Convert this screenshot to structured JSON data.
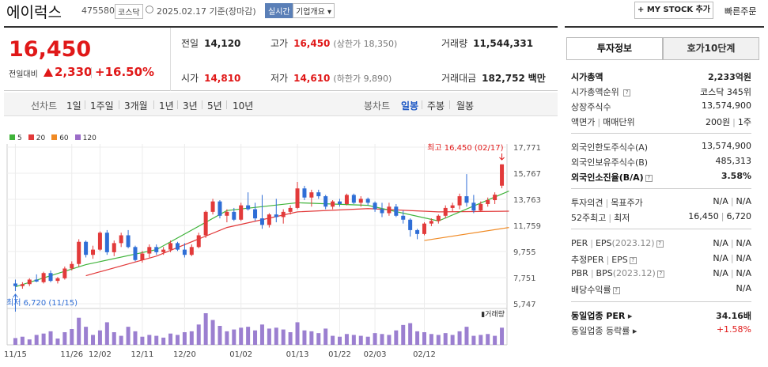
{
  "header": {
    "name": "에이럭스",
    "code": "475580",
    "market": "코스닥",
    "date": "2025.02.17",
    "date_suffix": "기준(장마감)",
    "live_badge": "실시간",
    "info_dropdown": "기업개요",
    "mystock_button": "+ MY STOCK 추가",
    "quick_order": "빠른주문"
  },
  "price": {
    "current": "16,450",
    "compare_label": "전일대비",
    "change": "2,330",
    "change_pct": "+16.50%",
    "accent_color": "#e01818"
  },
  "stats": {
    "prev_close": {
      "label": "전일",
      "value": "14,120"
    },
    "high": {
      "label": "고가",
      "value": "16,450",
      "sub_label": "(상한가",
      "sub_value": "18,350)"
    },
    "volume": {
      "label": "거래량",
      "value": "11,544,331"
    },
    "open": {
      "label": "시가",
      "value": "14,810"
    },
    "low": {
      "label": "저가",
      "value": "14,610",
      "sub_label": "(하한가",
      "sub_value": "9,890)"
    },
    "amount": {
      "label": "거래대금",
      "value": "182,752",
      "unit": "백만"
    }
  },
  "toolbar": {
    "line_label": "선차트",
    "line_periods": [
      "1일",
      "1주일",
      "3개월",
      "1년",
      "3년",
      "5년",
      "10년"
    ],
    "candle_label": "봉차트",
    "candle_periods": [
      "일봉",
      "주봉",
      "월봉"
    ],
    "candle_selected": "일봉"
  },
  "chart_data": {
    "type": "candlestick",
    "legend": [
      {
        "name": "5",
        "color": "#3fb33a"
      },
      {
        "name": "20",
        "color": "#e23a3a"
      },
      {
        "name": "60",
        "color": "#f08a24"
      },
      {
        "name": "120",
        "color": "#9b6cc8"
      }
    ],
    "y_ticks": [
      "17,771",
      "15,767",
      "13,763",
      "11,759",
      "9,755",
      "7,751",
      "5,747"
    ],
    "ylim": [
      5747,
      17771
    ],
    "x_ticks": [
      "11/15",
      "11/26",
      "12/02",
      "12/11",
      "12/20",
      "01/02",
      "01/13",
      "01/22",
      "02/03",
      "02/12"
    ],
    "max_annotation": "최고 16,450 (02/17)",
    "min_annotation": "최저 6,720 (11/15)",
    "volume_label": "거래량",
    "candles": [
      [
        7300,
        7600,
        6720,
        7100
      ],
      [
        7100,
        7400,
        6900,
        7250
      ],
      [
        7250,
        7700,
        7100,
        7600
      ],
      [
        7600,
        8000,
        7400,
        7450
      ],
      [
        7400,
        8200,
        7300,
        8100
      ],
      [
        8100,
        8300,
        7400,
        7500
      ],
      [
        7500,
        7800,
        7300,
        7700
      ],
      [
        7700,
        8600,
        7600,
        8450
      ],
      [
        8450,
        9000,
        8300,
        8800
      ],
      [
        8800,
        10700,
        8600,
        10500
      ],
      [
        10500,
        10600,
        9300,
        9500
      ],
      [
        9500,
        10200,
        9200,
        9900
      ],
      [
        9900,
        11300,
        9800,
        11200
      ],
      [
        11200,
        11400,
        9500,
        9700
      ],
      [
        9700,
        10600,
        9400,
        10400
      ],
      [
        10400,
        11200,
        10100,
        11000
      ],
      [
        11000,
        11400,
        10000,
        10100
      ],
      [
        10100,
        10200,
        9000,
        9100
      ],
      [
        9100,
        9800,
        8900,
        9600
      ],
      [
        9600,
        10300,
        9300,
        10100
      ],
      [
        10100,
        10300,
        9500,
        9700
      ],
      [
        9700,
        10100,
        9500,
        9900
      ],
      [
        9900,
        10600,
        9700,
        10400
      ],
      [
        10400,
        10500,
        9800,
        9900
      ],
      [
        9900,
        10400,
        9300,
        9500
      ],
      [
        9500,
        10300,
        9400,
        10100
      ],
      [
        10100,
        11200,
        10000,
        11000
      ],
      [
        11000,
        12900,
        10800,
        12800
      ],
      [
        12800,
        13800,
        12600,
        13600
      ],
      [
        13600,
        13700,
        12300,
        12500
      ],
      [
        12500,
        13000,
        12000,
        12800
      ],
      [
        12800,
        13100,
        12100,
        12200
      ],
      [
        12200,
        13500,
        12100,
        13300
      ],
      [
        13300,
        14300,
        12900,
        13000
      ],
      [
        13000,
        13500,
        12100,
        12300
      ],
      [
        12300,
        14100,
        11500,
        11800
      ],
      [
        11800,
        12700,
        11600,
        12600
      ],
      [
        12600,
        13800,
        12000,
        12400
      ],
      [
        12400,
        13000,
        11900,
        12800
      ],
      [
        12800,
        13300,
        12600,
        13100
      ],
      [
        13100,
        15100,
        13000,
        14600
      ],
      [
        14600,
        14800,
        13700,
        13900
      ],
      [
        13900,
        14500,
        13200,
        14300
      ],
      [
        14300,
        14500,
        13800,
        14000
      ],
      [
        14000,
        14100,
        13000,
        13200
      ],
      [
        13200,
        13700,
        13000,
        13600
      ],
      [
        13600,
        13800,
        13200,
        13400
      ],
      [
        13400,
        14200,
        13300,
        14100
      ],
      [
        14100,
        14200,
        13400,
        13500
      ],
      [
        13500,
        14000,
        13200,
        13800
      ],
      [
        13800,
        13900,
        13300,
        13500
      ],
      [
        13500,
        13600,
        12800,
        13000
      ],
      [
        13000,
        13500,
        12400,
        12700
      ],
      [
        12700,
        13500,
        12500,
        13200
      ],
      [
        13200,
        13400,
        12400,
        12500
      ],
      [
        12500,
        12900,
        11900,
        12200
      ],
      [
        12200,
        12300,
        10900,
        11400
      ],
      [
        11400,
        11500,
        10700,
        11100
      ],
      [
        11100,
        12000,
        11000,
        11900
      ],
      [
        11900,
        12300,
        11700,
        12100
      ],
      [
        12100,
        12600,
        11900,
        12500
      ],
      [
        12500,
        13300,
        12300,
        13100
      ],
      [
        13100,
        13500,
        12800,
        13300
      ],
      [
        13300,
        14200,
        13000,
        14000
      ],
      [
        14000,
        15700,
        13200,
        13500
      ],
      [
        13500,
        14100,
        12700,
        12900
      ],
      [
        12900,
        13600,
        12800,
        13400
      ],
      [
        13400,
        13900,
        13200,
        13700
      ],
      [
        13700,
        14300,
        13400,
        14120
      ],
      [
        14810,
        16450,
        14610,
        16450
      ]
    ],
    "ma5": [
      [
        0,
        7050
      ],
      [
        10,
        8750
      ],
      [
        20,
        9900
      ],
      [
        30,
        12900
      ],
      [
        40,
        13500
      ],
      [
        50,
        13300
      ],
      [
        60,
        12100
      ],
      [
        70,
        14400
      ]
    ],
    "ma20": [
      [
        10,
        7900
      ],
      [
        20,
        9400
      ],
      [
        30,
        11600
      ],
      [
        40,
        12800
      ],
      [
        50,
        13050
      ],
      [
        60,
        12800
      ],
      [
        70,
        12850
      ]
    ],
    "ma60": [
      [
        58,
        10600
      ],
      [
        70,
        11600
      ]
    ],
    "volumes": [
      15,
      18,
      12,
      22,
      25,
      30,
      14,
      28,
      35,
      60,
      40,
      22,
      32,
      50,
      28,
      20,
      40,
      30,
      18,
      22,
      20,
      16,
      25,
      22,
      28,
      30,
      45,
      70,
      55,
      42,
      30,
      34,
      38,
      40,
      32,
      45,
      36,
      38,
      34,
      28,
      50,
      32,
      30,
      26,
      36,
      20,
      18,
      24,
      22,
      20,
      18,
      26,
      24,
      22,
      32,
      44,
      48,
      30,
      28,
      24,
      22,
      26,
      22,
      30,
      40,
      20,
      22,
      24,
      20,
      38
    ]
  },
  "side": {
    "tab_active": "투자정보",
    "tab_inactive": "호가10단계",
    "market_cap": {
      "label": "시가총액",
      "value": "2,233억원"
    },
    "market_cap_rank": {
      "label": "시가총액순위",
      "value": "코스닥 345위"
    },
    "listed_shares": {
      "label": "상장주식수",
      "value": "13,574,900"
    },
    "par": {
      "label": "액면가",
      "label2": "매매단위",
      "value": "200원",
      "value2": "1주"
    },
    "foreign_limit": {
      "label": "외국인한도주식수(A)",
      "value": "13,574,900"
    },
    "foreign_hold": {
      "label": "외국인보유주식수(B)",
      "value": "485,313"
    },
    "foreign_ratio": {
      "label": "외국인소진율(B/A)",
      "value": "3.58%"
    },
    "opinion": {
      "label": "투자의견",
      "label2": "목표주가",
      "value": "N/A",
      "value2": "N/A"
    },
    "week52": {
      "label": "52주최고",
      "label2": "최저",
      "value": "16,450",
      "value2": "6,720"
    },
    "per": {
      "label": "PER",
      "label2": "EPS",
      "period": "(2023.12)",
      "value": "N/A",
      "value2": "N/A"
    },
    "est_per": {
      "label": "추정PER",
      "label2": "EPS",
      "value": "N/A",
      "value2": "N/A"
    },
    "pbr": {
      "label": "PBR",
      "label2": "BPS",
      "period": "(2023.12)",
      "value": "N/A",
      "value2": "N/A"
    },
    "dividend": {
      "label": "배당수익률",
      "value": "N/A"
    },
    "sector_per": {
      "label": "동일업종 PER",
      "value": "34.16배"
    },
    "sector_change": {
      "label": "동일업종 등락률",
      "value": "+1.58%"
    }
  }
}
